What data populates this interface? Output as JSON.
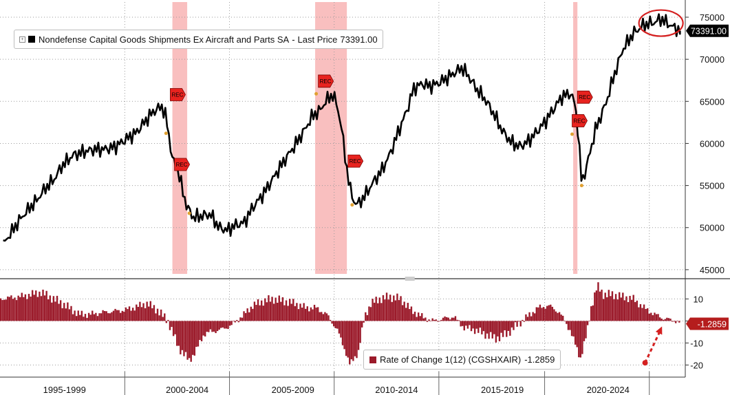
{
  "colors": {
    "line": "#000000",
    "bar": "#9b1a2a",
    "recession_band": "#f8b4b4",
    "rec_marker": "#e8231f",
    "label_bg": "#000000",
    "label_text": "#ffffff",
    "neg_label_bg": "#b51d1d",
    "highlight": "#d42020",
    "grid": "#9a9a9a",
    "orange_dot": "#e0a030"
  },
  "icons": {
    "expand": "plus-square-icon",
    "recession_flag": "rec-flag-icon",
    "arrow": "dashed-arrow-icon"
  },
  "legend_top": {
    "series_name": "Nondefense Capital Goods Shipments Ex Aircraft and Parts SA",
    "separator": "-",
    "last_price_label": "Last Price",
    "last_price_value": "73391.00"
  },
  "legend_bottom": {
    "name": "Rate of Change 1(12) (CGSHXAIR)",
    "value": "-1.2859"
  },
  "rec_flag_text": "REC",
  "chart_data": [
    {
      "type": "line",
      "title": "",
      "series": [
        {
          "name": "Nondefense Capital Goods Shipments Ex Aircraft and Parts SA",
          "points": [
            [
              1993.2,
              48000
            ],
            [
              1993.6,
              49500
            ],
            [
              1994.0,
              51000
            ],
            [
              1994.4,
              52200
            ],
            [
              1994.8,
              53300
            ],
            [
              1995.2,
              54700
            ],
            [
              1995.6,
              55700
            ],
            [
              1996.0,
              57400
            ],
            [
              1996.5,
              58600
            ],
            [
              1997.0,
              59000
            ],
            [
              1997.5,
              59300
            ],
            [
              1998.0,
              59300
            ],
            [
              1998.5,
              59600
            ],
            [
              1999.0,
              60500
            ],
            [
              1999.5,
              61300
            ],
            [
              1999.9,
              62600
            ],
            [
              2000.3,
              63800
            ],
            [
              2000.7,
              64400
            ],
            [
              2000.9,
              63100
            ],
            [
              2001.0,
              61500
            ],
            [
              2001.2,
              58200
            ],
            [
              2001.5,
              56500
            ],
            [
              2001.7,
              54200
            ],
            [
              2001.9,
              52400
            ],
            [
              2002.2,
              51200
            ],
            [
              2002.6,
              51400
            ],
            [
              2003.0,
              51600
            ],
            [
              2003.4,
              50000
            ],
            [
              2003.8,
              49700
            ],
            [
              2004.2,
              50300
            ],
            [
              2004.6,
              50600
            ],
            [
              2005.0,
              52400
            ],
            [
              2005.5,
              54000
            ],
            [
              2006.0,
              56000
            ],
            [
              2006.5,
              58000
            ],
            [
              2007.0,
              59800
            ],
            [
              2007.5,
              61800
            ],
            [
              2007.8,
              63200
            ],
            [
              2008.2,
              64000
            ],
            [
              2008.5,
              65200
            ],
            [
              2008.8,
              65800
            ],
            [
              2009.0,
              64400
            ],
            [
              2009.2,
              61800
            ],
            [
              2009.4,
              57800
            ],
            [
              2009.6,
              54600
            ],
            [
              2009.8,
              53000
            ],
            [
              2010.0,
              52800
            ],
            [
              2010.3,
              53800
            ],
            [
              2010.7,
              55400
            ],
            [
              2011.1,
              56800
            ],
            [
              2011.5,
              58800
            ],
            [
              2011.9,
              61500
            ],
            [
              2012.3,
              64000
            ],
            [
              2012.6,
              66500
            ],
            [
              2013.0,
              67100
            ],
            [
              2013.4,
              66800
            ],
            [
              2013.8,
              67200
            ],
            [
              2014.2,
              67800
            ],
            [
              2014.6,
              68500
            ],
            [
              2014.9,
              69000
            ],
            [
              2015.2,
              68000
            ],
            [
              2015.6,
              66400
            ],
            [
              2016.0,
              65200
            ],
            [
              2016.4,
              63500
            ],
            [
              2016.8,
              61500
            ],
            [
              2017.2,
              60200
            ],
            [
              2017.6,
              59600
            ],
            [
              2018.0,
              60200
            ],
            [
              2018.4,
              61300
            ],
            [
              2018.8,
              62500
            ],
            [
              2019.2,
              64000
            ],
            [
              2019.6,
              65500
            ],
            [
              2020.0,
              66000
            ],
            [
              2020.2,
              65000
            ],
            [
              2020.35,
              62400
            ],
            [
              2020.45,
              59000
            ],
            [
              2020.55,
              55200
            ],
            [
              2020.8,
              57400
            ],
            [
              2021.2,
              61600
            ],
            [
              2021.7,
              64800
            ],
            [
              2022.1,
              68200
            ],
            [
              2022.5,
              71200
            ],
            [
              2023.0,
              73100
            ],
            [
              2023.5,
              74100
            ],
            [
              2024.0,
              74400
            ],
            [
              2024.3,
              74800
            ],
            [
              2024.6,
              74300
            ],
            [
              2024.9,
              73800
            ],
            [
              2025.2,
              73391
            ]
          ]
        }
      ],
      "ylim": [
        44500,
        76800
      ],
      "yticks": [
        45000,
        50000,
        55000,
        60000,
        65000,
        70000,
        75000
      ],
      "last_label": "73391.00",
      "recession_bands": [
        [
          2001.2,
          2001.9
        ],
        [
          2007.95,
          2009.45
        ],
        [
          2020.15,
          2020.35
        ]
      ],
      "rec_markers": [
        [
          2001.1,
          65800
        ],
        [
          2001.3,
          57500
        ],
        [
          2008.1,
          67400
        ],
        [
          2009.5,
          57900
        ],
        [
          2020.1,
          62700
        ],
        [
          2020.35,
          65500
        ]
      ],
      "orange_dots": [
        [
          2000.9,
          61200
        ],
        [
          2002.0,
          51700
        ],
        [
          2008.0,
          65900
        ],
        [
          2009.7,
          52700
        ],
        [
          2020.1,
          61100
        ],
        [
          2020.55,
          55000
        ]
      ],
      "highlight_circle": [
        2024.3,
        74300
      ],
      "grid": true
    },
    {
      "type": "bar",
      "title": "",
      "series": [
        {
          "name": "Rate of Change 1(12) (CGSHXAIR)",
          "points": [
            [
              1993.0,
              10
            ],
            [
              1994.0,
              11
            ],
            [
              1995.0,
              13
            ],
            [
              1996.0,
              8
            ],
            [
              1996.8,
              3
            ],
            [
              1997.3,
              3
            ],
            [
              1998.0,
              4
            ],
            [
              1999.0,
              5
            ],
            [
              1999.7,
              7
            ],
            [
              2000.0,
              8
            ],
            [
              2000.5,
              5
            ],
            [
              2001.0,
              0
            ],
            [
              2001.5,
              -12
            ],
            [
              2002.0,
              -18
            ],
            [
              2002.3,
              -14
            ],
            [
              2002.7,
              -6
            ],
            [
              2003.0,
              -5
            ],
            [
              2003.5,
              -4
            ],
            [
              2004.0,
              -2
            ],
            [
              2004.6,
              3
            ],
            [
              2005.0,
              7
            ],
            [
              2005.5,
              9
            ],
            [
              2006.0,
              10
            ],
            [
              2006.5,
              9
            ],
            [
              2007.0,
              8
            ],
            [
              2007.5,
              6
            ],
            [
              2008.0,
              6
            ],
            [
              2008.5,
              3
            ],
            [
              2009.0,
              -4
            ],
            [
              2009.4,
              -14
            ],
            [
              2009.6,
              -20
            ],
            [
              2010.0,
              -14
            ],
            [
              2010.3,
              2
            ],
            [
              2010.6,
              8
            ],
            [
              2011.0,
              10
            ],
            [
              2011.5,
              11
            ],
            [
              2012.0,
              10
            ],
            [
              2012.5,
              5
            ],
            [
              2013.0,
              2
            ],
            [
              2013.5,
              0
            ],
            [
              2014.0,
              1
            ],
            [
              2014.5,
              2
            ],
            [
              2015.0,
              -3
            ],
            [
              2015.5,
              -4
            ],
            [
              2016.0,
              -6
            ],
            [
              2016.5,
              -8
            ],
            [
              2017.0,
              -6
            ],
            [
              2017.5,
              -2
            ],
            [
              2018.0,
              2
            ],
            [
              2018.5,
              6
            ],
            [
              2019.0,
              7
            ],
            [
              2019.5,
              4
            ],
            [
              2020.0,
              -4
            ],
            [
              2020.5,
              -17
            ],
            [
              2020.8,
              -6
            ],
            [
              2021.0,
              6
            ],
            [
              2021.3,
              16
            ],
            [
              2021.6,
              12
            ],
            [
              2022.0,
              12
            ],
            [
              2022.5,
              11
            ],
            [
              2023.0,
              10
            ],
            [
              2023.5,
              6
            ],
            [
              2024.0,
              3
            ],
            [
              2024.5,
              1
            ],
            [
              2025.0,
              0
            ],
            [
              2025.25,
              -1.29
            ]
          ]
        }
      ],
      "ylim": [
        -23,
        17
      ],
      "yticks": [
        -20,
        -10,
        0,
        10
      ],
      "ytick_labels": [
        "-20",
        "-10",
        "",
        "10"
      ],
      "last_label": "-1.2859",
      "arrow_from": [
        2023.55,
        -19
      ],
      "arrow_to": [
        2024.35,
        -2.5
      ]
    }
  ],
  "x_axis": {
    "period_labels": [
      {
        "label": "1995-1999",
        "center": 1996.1
      },
      {
        "label": "2000-2004",
        "center": 2001.9
      },
      {
        "label": "2005-2009",
        "center": 2006.9
      },
      {
        "label": "2010-2014",
        "center": 2011.8
      },
      {
        "label": "2015-2019",
        "center": 2016.8
      },
      {
        "label": "2020-2024",
        "center": 2021.8
      }
    ],
    "boundaries": [
      1998.95,
      2003.9,
      2008.85,
      2013.8,
      2018.8,
      2023.75
    ],
    "range": [
      1993.05,
      2025.45
    ]
  }
}
